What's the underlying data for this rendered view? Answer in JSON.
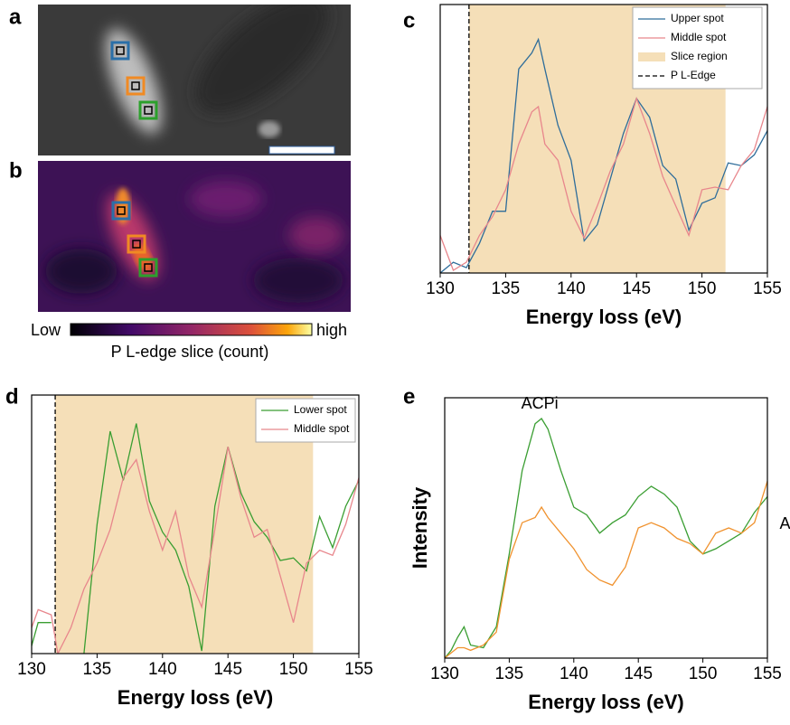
{
  "panels": {
    "a": "a",
    "b": "b",
    "c": "c",
    "d": "d",
    "e": "e",
    "colorbar": {
      "low": "Low",
      "high": "high",
      "label": "P L-edge slice (count)"
    }
  },
  "chart_data": [
    {
      "type": "line",
      "xlabel": "Energy loss (eV)",
      "xlim": [
        130,
        155
      ],
      "xticks": [
        130,
        135,
        140,
        145,
        150,
        155
      ],
      "ylim": [
        0,
        100
      ],
      "legend": "upper right",
      "slice_region": {
        "name": "Slice region",
        "range": [
          132.2,
          151.8
        ],
        "color": "#f5dfb8"
      },
      "edge_line": {
        "name": "P L-Edge",
        "value": 132.2,
        "color": "#000000"
      },
      "x": [
        130,
        131,
        132,
        133,
        134,
        135,
        136,
        137,
        137.5,
        138,
        139,
        140,
        141,
        142,
        143,
        144,
        145,
        146,
        147,
        148,
        149,
        150,
        151,
        152,
        153,
        154,
        155
      ],
      "series": [
        {
          "name": "Upper spot",
          "color": "#2f6d9a",
          "values": [
            0,
            4,
            2,
            11,
            23,
            23,
            76,
            82,
            87,
            76,
            55,
            42,
            12,
            18,
            35,
            52,
            65,
            58,
            40,
            35,
            16,
            26,
            28,
            41,
            40,
            44,
            53
          ]
        },
        {
          "name": "Middle spot",
          "color": "#e8868c",
          "values": [
            14,
            1,
            4,
            14,
            21,
            31,
            48,
            60,
            62,
            48,
            42,
            23,
            13,
            25,
            38,
            48,
            65,
            52,
            36,
            25,
            14,
            31,
            32,
            31,
            40,
            46,
            62
          ]
        }
      ]
    },
    {
      "type": "line",
      "xlabel": "Energy loss (eV)",
      "xlim": [
        130,
        155
      ],
      "xticks": [
        130,
        135,
        140,
        145,
        150,
        155
      ],
      "ylim": [
        0,
        100
      ],
      "legend": "upper right",
      "slice_region": {
        "range": [
          131.8,
          151.5
        ],
        "color": "#f5dfb8"
      },
      "edge_line": {
        "value": 131.8,
        "color": "#000000"
      },
      "x": [
        130,
        130.5,
        131.5,
        132,
        133,
        134,
        135,
        136,
        137,
        138,
        139,
        140,
        141,
        142,
        143,
        144,
        145,
        146,
        147,
        148,
        149,
        150,
        151,
        152,
        153,
        154,
        155
      ],
      "series": [
        {
          "name": "Lower spot",
          "color": "#3a9e32",
          "values": [
            3,
            12,
            12,
            null,
            null,
            0,
            50,
            86,
            67,
            89,
            59,
            47,
            40,
            26,
            1,
            57,
            80,
            62,
            51,
            45,
            36,
            37,
            32,
            53,
            41,
            57,
            67
          ]
        },
        {
          "name": "Middle spot",
          "color": "#e8868c",
          "values": [
            10,
            17,
            15,
            0,
            10,
            25,
            35,
            48,
            68,
            75,
            55,
            40,
            55,
            30,
            18,
            48,
            80,
            60,
            45,
            48,
            30,
            12,
            35,
            40,
            38,
            50,
            68
          ]
        }
      ]
    },
    {
      "type": "line",
      "xlabel": "Energy loss (eV)",
      "ylabel": "Intensity",
      "xlim": [
        130,
        155
      ],
      "xticks": [
        130,
        135,
        140,
        145,
        150,
        155
      ],
      "ylim": [
        0,
        100
      ],
      "series_labels": true,
      "x": [
        130,
        130.5,
        131,
        131.5,
        132,
        133,
        134,
        135,
        136,
        137,
        137.5,
        138,
        139,
        140,
        141,
        142,
        143,
        144,
        145,
        146,
        147,
        148,
        149,
        150,
        151,
        152,
        153,
        154,
        155
      ],
      "series": [
        {
          "name": "ACPi",
          "color": "#3a9e32",
          "values": [
            0,
            3,
            8,
            12,
            5,
            4,
            12,
            40,
            72,
            90,
            92,
            88,
            72,
            58,
            55,
            48,
            52,
            55,
            62,
            66,
            63,
            58,
            45,
            40,
            42,
            45,
            48,
            56,
            62
          ]
        },
        {
          "name": "ACPPi",
          "color": "#f0922e",
          "values": [
            0,
            2,
            4,
            4,
            3,
            5,
            10,
            38,
            52,
            54,
            58,
            54,
            48,
            42,
            34,
            30,
            28,
            35,
            50,
            52,
            50,
            46,
            44,
            40,
            48,
            50,
            48,
            52,
            68
          ]
        }
      ]
    }
  ]
}
